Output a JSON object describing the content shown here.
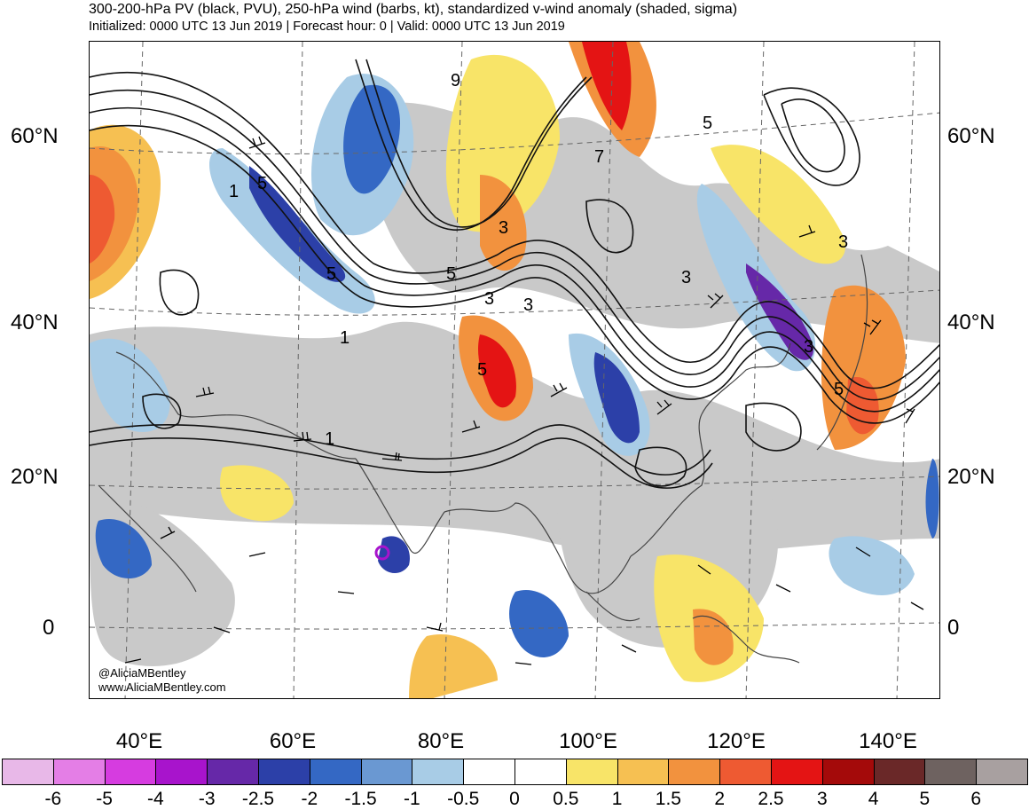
{
  "header": {
    "title": "300-200-hPa PV (black, PVU), 250-hPa wind (barbs, kt), standardized v-wind anomaly (shaded, sigma)",
    "subtitle": "Initialized: 0000 UTC 13 Jun 2019 | Forecast hour: 0 | Valid: 0000 UTC 13 Jun 2019"
  },
  "map": {
    "lat_labels": [
      "60°N",
      "40°N",
      "20°N",
      "0"
    ],
    "lon_labels": [
      "40°E",
      "60°E",
      "80°E",
      "100°E",
      "120°E",
      "140°E"
    ],
    "contour_labels": [
      "9",
      "5",
      "1",
      "3",
      "3",
      "5",
      "3",
      "3",
      "5",
      "7",
      "3",
      "5",
      "3",
      "5",
      "5",
      "1",
      "1",
      "1",
      "7",
      "5"
    ],
    "credit_handle": "@AliciaMBentley",
    "credit_site": "www.AliciaMBentley.com"
  },
  "colorbar": {
    "labels": [
      "-6",
      "-5",
      "-4",
      "-3",
      "-2.5",
      "-2",
      "-1.5",
      "-1",
      "-0.5",
      "0",
      "0.5",
      "1",
      "1.5",
      "2",
      "2.5",
      "3",
      "4",
      "5",
      "6"
    ],
    "colors": [
      "#e8b8e8",
      "#e47ee6",
      "#d63ce0",
      "#a814cc",
      "#6628a8",
      "#2c40a8",
      "#3468c4",
      "#6a98d2",
      "#a8cce6",
      "#ffffff",
      "#ffffff",
      "#f8e468",
      "#f6c052",
      "#f2923e",
      "#ee5a32",
      "#e41414",
      "#a40a0a",
      "#6a2828",
      "#6e6260",
      "#a8a0a0"
    ]
  }
}
